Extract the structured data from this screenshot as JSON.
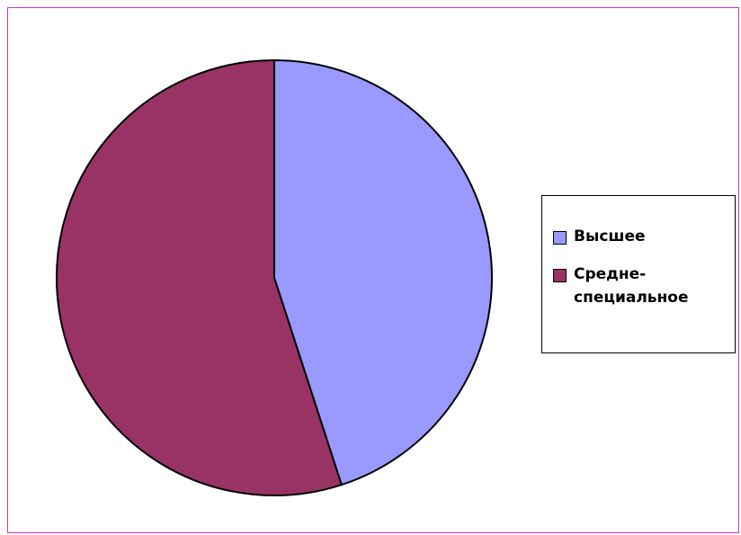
{
  "chart_data": {
    "type": "pie",
    "categories": [
      "Высшее",
      "Средне-специальное"
    ],
    "values": [
      45,
      55
    ],
    "colors": [
      "#9999ff",
      "#993366"
    ],
    "legend": "right"
  }
}
